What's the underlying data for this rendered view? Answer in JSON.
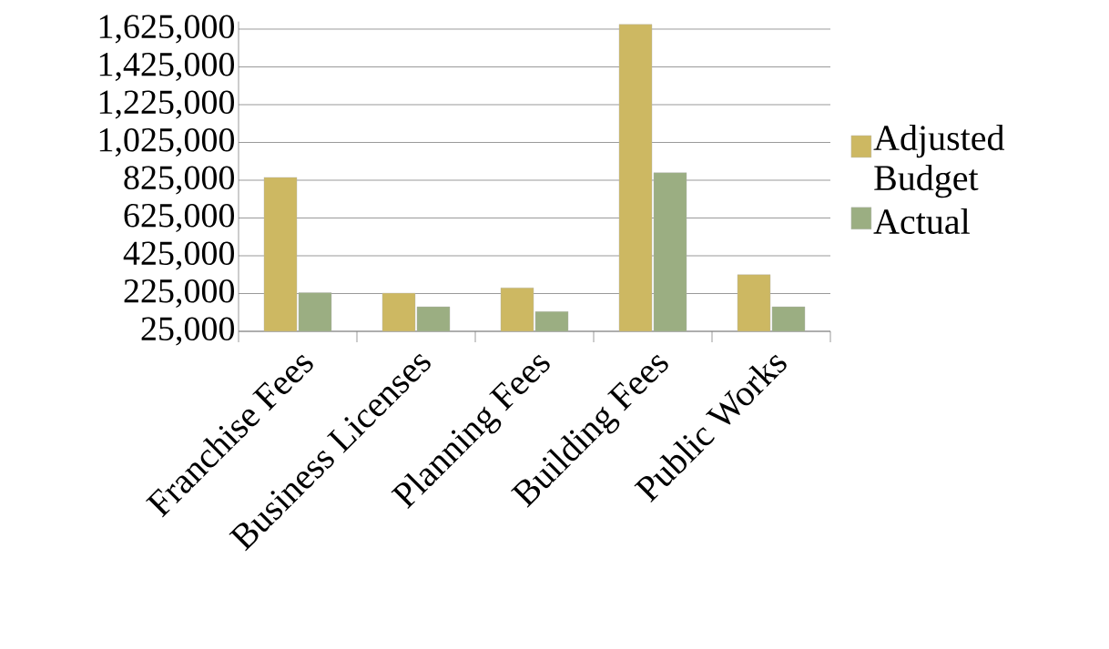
{
  "chart_data": {
    "type": "bar",
    "categories": [
      "Franchise Fees",
      "Business Licenses",
      "Planning Fees",
      "Building Fees",
      "Public Works"
    ],
    "series": [
      {
        "name": "Adjusted Budget",
        "color": "#cdb862",
        "values": [
          840000,
          227000,
          255000,
          1650000,
          325000
        ]
      },
      {
        "name": "Actual",
        "color": "#9bae82",
        "values": [
          230000,
          155000,
          130000,
          865000,
          155000
        ]
      }
    ],
    "ylim": [
      25000,
      1665000
    ],
    "yticks": [
      {
        "value": 25000,
        "label": "25,000"
      },
      {
        "value": 225000,
        "label": "225,000"
      },
      {
        "value": 425000,
        "label": "425,000"
      },
      {
        "value": 625000,
        "label": "625,000"
      },
      {
        "value": 825000,
        "label": "825,000"
      },
      {
        "value": 1025000,
        "label": "1,025,000"
      },
      {
        "value": 1225000,
        "label": "1,225,000"
      },
      {
        "value": 1425000,
        "label": "1,425,000"
      },
      {
        "value": 1625000,
        "label": "1,625,000"
      }
    ],
    "grid": "y",
    "legend": "right"
  }
}
